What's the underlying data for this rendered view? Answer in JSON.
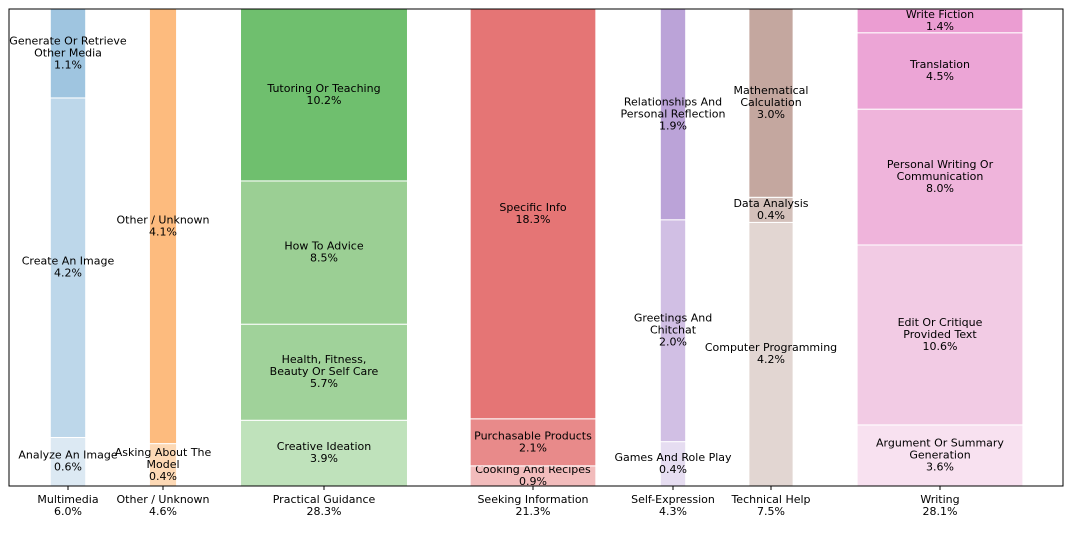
{
  "chart_data": {
    "type": "marimekko",
    "groups": [
      {
        "name": "Multimedia",
        "total": 6.0,
        "total_label": "6.0%",
        "names": [
          [
            "Analyze An Image"
          ],
          [
            "Create An Image"
          ],
          [
            "Generate Or Retrieve",
            "Other Media"
          ]
        ],
        "values": [
          0.6,
          4.2,
          1.1
        ],
        "value_labels": [
          "0.6%",
          "4.2%",
          "1.1%"
        ],
        "colors": [
          "#dce9f3",
          "#bdd7ea",
          "#9fc5e0"
        ]
      },
      {
        "name": "Other / Unknown",
        "total": 4.6,
        "total_label": "4.6%",
        "names": [
          [
            "Asking About The",
            "Model"
          ],
          [
            "Other / Unknown"
          ]
        ],
        "values": [
          0.4,
          4.1
        ],
        "value_labels": [
          "0.4%",
          "4.1%"
        ],
        "colors": [
          "#fdd9b5",
          "#fdbb7e"
        ]
      },
      {
        "name": "Practical Guidance",
        "total": 28.3,
        "total_label": "28.3%",
        "names": [
          [
            "Creative Ideation"
          ],
          [
            "Health, Fitness,",
            "Beauty Or Self Care"
          ],
          [
            "How To Advice"
          ],
          [
            "Tutoring Or Teaching"
          ]
        ],
        "values": [
          3.9,
          5.7,
          8.5,
          10.2
        ],
        "value_labels": [
          "3.9%",
          "5.7%",
          "8.5%",
          "10.2%"
        ],
        "colors": [
          "#bfe2bb",
          "#a0d29a",
          "#9bcf94",
          "#6fbf6e"
        ]
      },
      {
        "name": "Seeking Information",
        "total": 21.3,
        "total_label": "21.3%",
        "names": [
          [
            "Cooking And Recipes"
          ],
          [
            "Purchasable Products"
          ],
          [
            "Specific Info"
          ]
        ],
        "values": [
          0.9,
          2.1,
          18.3
        ],
        "value_labels": [
          "0.9%",
          "2.1%",
          "18.3%"
        ],
        "colors": [
          "#f2bcbc",
          "#e88a8a",
          "#e57575"
        ]
      },
      {
        "name": "Self-Expression",
        "total": 4.3,
        "total_label": "4.3%",
        "names": [
          [
            "Games And Role Play"
          ],
          [
            "Greetings And",
            "Chitchat"
          ],
          [
            "Relationships And",
            "Personal Reflection"
          ]
        ],
        "values": [
          0.4,
          2.0,
          1.9
        ],
        "value_labels": [
          "0.4%",
          "2.0%",
          "1.9%"
        ],
        "colors": [
          "#e6ddf1",
          "#d1bfe4",
          "#bba3d8"
        ]
      },
      {
        "name": "Technical Help",
        "total": 7.5,
        "total_label": "7.5%",
        "names": [
          [
            "Computer Programming"
          ],
          [
            "Data Analysis"
          ],
          [
            "Mathematical",
            "Calculation"
          ]
        ],
        "values": [
          4.2,
          0.4,
          3.0
        ],
        "value_labels": [
          "4.2%",
          "0.4%",
          "3.0%"
        ],
        "colors": [
          "#e2d6d2",
          "#d3c0ba",
          "#c4a79f"
        ]
      },
      {
        "name": "Writing",
        "total": 28.1,
        "total_label": "28.1%",
        "names": [
          [
            "Argument Or Summary",
            "Generation"
          ],
          [
            "Edit Or Critique",
            "Provided Text"
          ],
          [
            "Personal Writing Or",
            "Communication"
          ],
          [
            "Translation"
          ],
          [
            "Write Fiction"
          ]
        ],
        "values": [
          3.6,
          10.6,
          8.0,
          4.5,
          1.4
        ],
        "value_labels": [
          "3.6%",
          "10.6%",
          "8.0%",
          "4.5%",
          "1.4%"
        ],
        "colors": [
          "#f8e1f0",
          "#f2cbe4",
          "#efb4db",
          "#eca5d6",
          "#eb9dd2"
        ]
      }
    ]
  }
}
